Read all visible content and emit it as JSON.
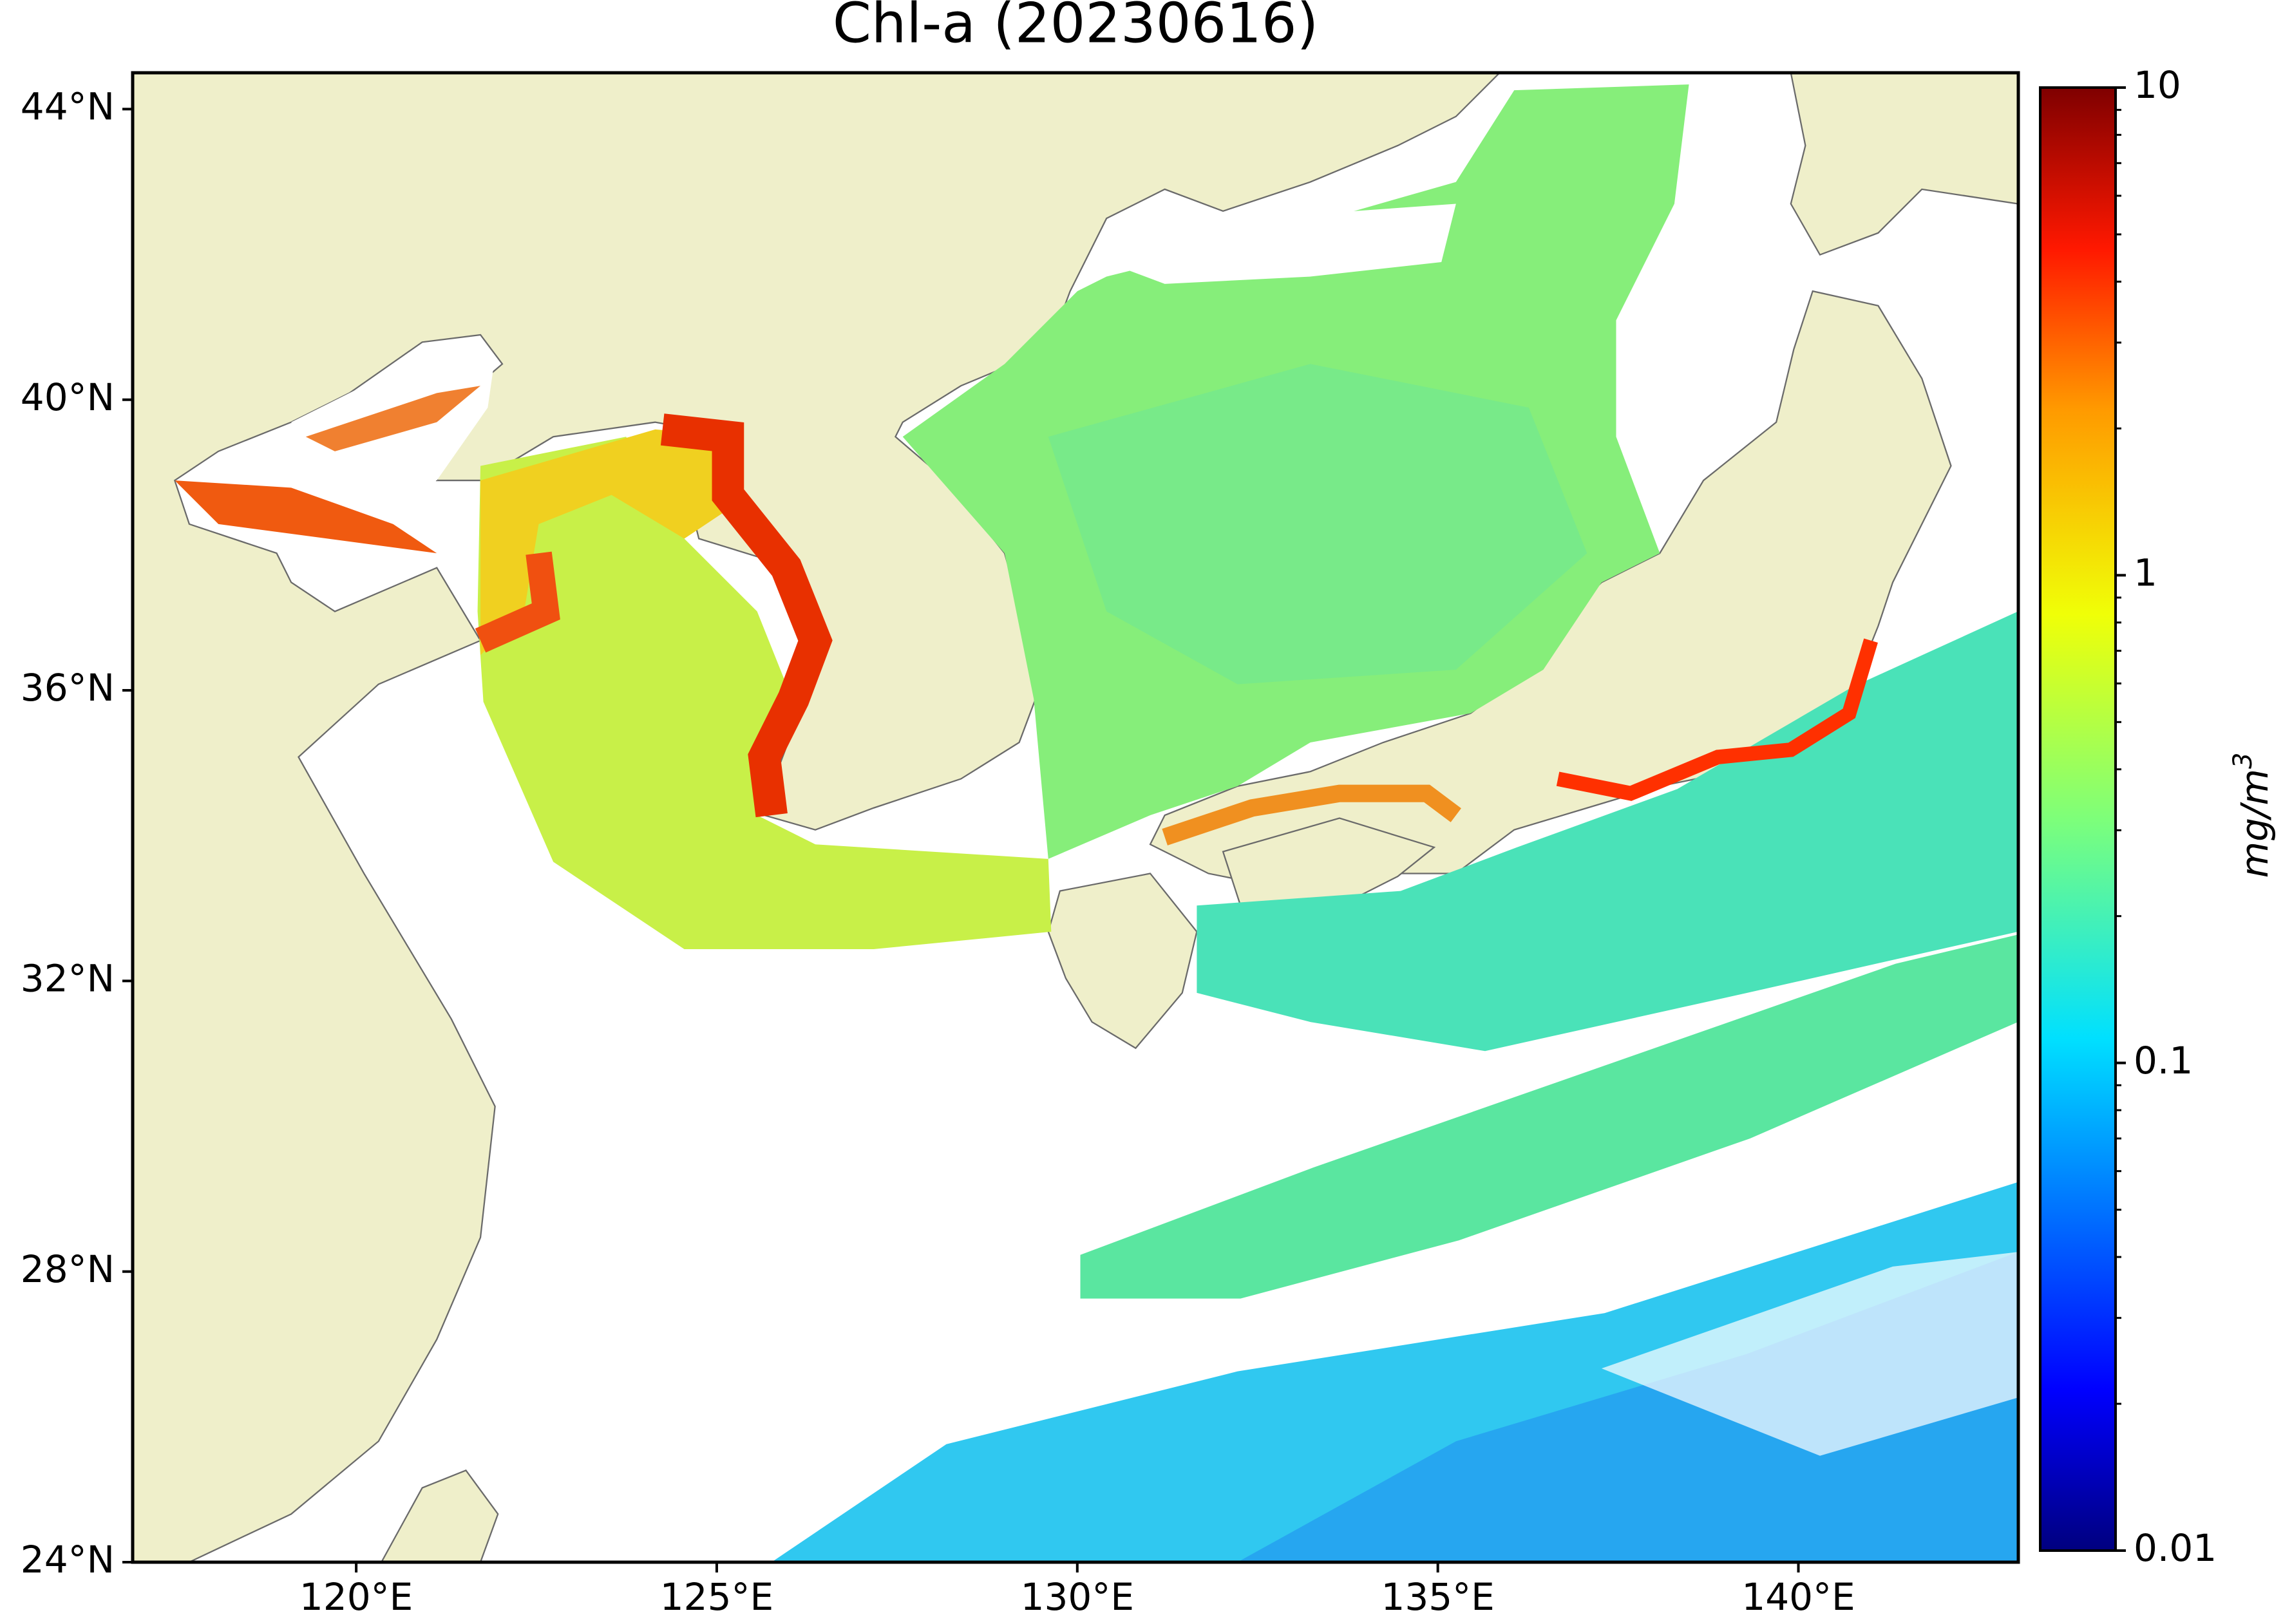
{
  "chart_data": {
    "type": "map",
    "title": "Chl-a (20230616)",
    "xlim": [
      116.9,
      143.05
    ],
    "ylim": [
      24,
      44.5
    ],
    "xticks": [
      {
        "value": 120,
        "label": "120°E"
      },
      {
        "value": 125,
        "label": "125°E"
      },
      {
        "value": 130,
        "label": "130°E"
      },
      {
        "value": 135,
        "label": "135°E"
      },
      {
        "value": 140,
        "label": "140°E"
      }
    ],
    "yticks": [
      {
        "value": 24,
        "label": "24°N"
      },
      {
        "value": 28,
        "label": "28°N"
      },
      {
        "value": 32,
        "label": "32°N"
      },
      {
        "value": 36,
        "label": "36°N"
      },
      {
        "value": 40,
        "label": "40°N"
      },
      {
        "value": 44,
        "label": "44°N"
      }
    ],
    "colorbar": {
      "label": "mg/m",
      "label_superscript": "3",
      "scale": "log",
      "colormap": "jet",
      "lim": [
        0.01,
        10
      ],
      "ticks": [
        {
          "value": 0.01,
          "label": "0.01"
        },
        {
          "value": 0.1,
          "label": "0.1"
        },
        1,
        10
      ],
      "minor_ticks": [
        0.02,
        0.03,
        0.04,
        0.05,
        0.06,
        0.07,
        0.08,
        0.09,
        0.2,
        0.3,
        0.4,
        0.5,
        0.6,
        0.7,
        0.8,
        0.9,
        2,
        3,
        4,
        5,
        6,
        7,
        8,
        9
      ]
    }
  }
}
